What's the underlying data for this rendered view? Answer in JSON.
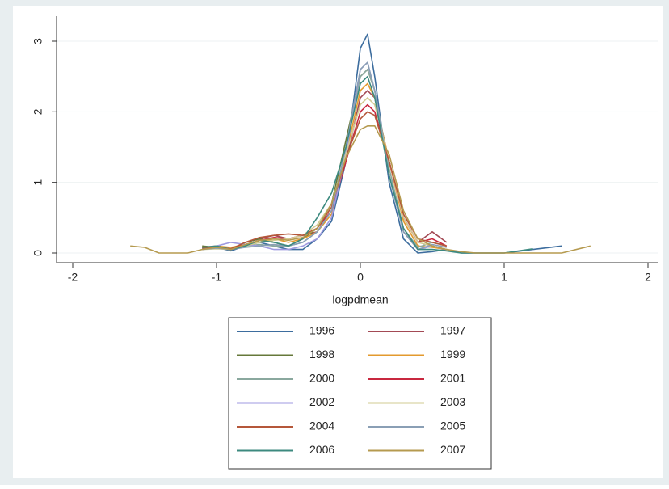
{
  "chart_data": {
    "type": "line",
    "xlabel": "logpdmean",
    "x": [
      -1.6,
      -1.5,
      -1.4,
      -1.2,
      -1.1,
      -1.0,
      -0.9,
      -0.8,
      -0.7,
      -0.6,
      -0.5,
      -0.4,
      -0.3,
      -0.2,
      -0.1,
      0,
      0.05,
      0.1,
      0.2,
      0.3,
      0.4,
      0.5,
      0.6,
      0.7,
      0.8,
      1.0,
      1.2,
      1.4,
      1.6
    ],
    "xlim": [
      -2,
      2
    ],
    "xticks": [
      -2,
      -1,
      0,
      1,
      2
    ],
    "ylim": [
      0,
      3
    ],
    "yticks": [
      0,
      1,
      2,
      3
    ],
    "grid": true,
    "legend": "bottom",
    "series": [
      {
        "name": "1996",
        "color": "#3d6d9e",
        "values": [
          null,
          null,
          null,
          null,
          0.05,
          0.08,
          0.03,
          0.1,
          0.15,
          0.1,
          0.05,
          0.05,
          0.2,
          0.45,
          1.3,
          2.9,
          3.1,
          2.5,
          1.0,
          0.2,
          0.0,
          0.02,
          0.05,
          0.0,
          0.0,
          0.0,
          0.05,
          0.1,
          null
        ]
      },
      {
        "name": "1997",
        "color": "#a34a55",
        "values": [
          null,
          null,
          null,
          null,
          0.08,
          0.1,
          0.05,
          0.15,
          0.2,
          0.25,
          0.2,
          0.25,
          0.3,
          0.6,
          1.3,
          2.2,
          2.3,
          2.2,
          1.3,
          0.5,
          0.15,
          0.3,
          0.15,
          null,
          null,
          null,
          null,
          null,
          null
        ]
      },
      {
        "name": "1998",
        "color": "#66783a",
        "values": [
          null,
          null,
          null,
          null,
          0.1,
          0.08,
          0.05,
          0.15,
          0.2,
          0.15,
          0.1,
          0.2,
          0.35,
          0.7,
          1.6,
          2.5,
          2.6,
          2.3,
          1.1,
          0.3,
          0.05,
          0.1,
          0.05,
          null,
          null,
          null,
          null,
          null,
          null
        ]
      },
      {
        "name": "1999",
        "color": "#e39a2e",
        "values": [
          null,
          null,
          null,
          null,
          0.06,
          0.1,
          0.08,
          0.12,
          0.15,
          0.2,
          0.15,
          0.2,
          0.3,
          0.55,
          1.4,
          2.3,
          2.4,
          2.2,
          1.3,
          0.45,
          0.1,
          0.08,
          0.05,
          null,
          null,
          null,
          null,
          null,
          null
        ]
      },
      {
        "name": "2000",
        "color": "#8aa89e",
        "values": [
          null,
          null,
          null,
          null,
          0.05,
          0.07,
          0.05,
          0.1,
          0.12,
          0.1,
          0.1,
          0.15,
          0.3,
          0.6,
          1.5,
          2.5,
          2.6,
          2.3,
          1.2,
          0.35,
          0.08,
          0.15,
          0.1,
          null,
          null,
          null,
          null,
          null,
          null
        ]
      },
      {
        "name": "2001",
        "color": "#c8283f",
        "values": [
          null,
          null,
          null,
          null,
          0.05,
          0.08,
          0.06,
          0.12,
          0.18,
          0.22,
          0.2,
          0.25,
          0.35,
          0.6,
          1.3,
          2.0,
          2.1,
          2.0,
          1.3,
          0.5,
          0.15,
          0.2,
          0.1,
          null,
          null,
          null,
          null,
          null,
          null
        ]
      },
      {
        "name": "2002",
        "color": "#9f9ae0",
        "values": [
          null,
          null,
          null,
          null,
          0.06,
          0.1,
          0.15,
          0.12,
          0.1,
          0.05,
          0.05,
          0.1,
          0.2,
          0.5,
          1.4,
          2.6,
          2.7,
          2.3,
          1.1,
          0.3,
          0.05,
          0.1,
          0.05,
          null,
          null,
          null,
          null,
          null,
          null
        ]
      },
      {
        "name": "2003",
        "color": "#d2cb92",
        "values": [
          null,
          null,
          null,
          null,
          0.05,
          0.06,
          0.05,
          0.1,
          0.15,
          0.18,
          0.2,
          0.25,
          0.4,
          0.7,
          1.4,
          2.1,
          2.2,
          2.1,
          1.3,
          0.5,
          0.15,
          0.1,
          0.05,
          null,
          null,
          null,
          null,
          null,
          null
        ]
      },
      {
        "name": "2004",
        "color": "#b5573a",
        "values": [
          null,
          null,
          null,
          null,
          0.07,
          0.09,
          0.06,
          0.15,
          0.22,
          0.25,
          0.27,
          0.25,
          0.35,
          0.65,
          1.35,
          1.9,
          2.0,
          1.95,
          1.3,
          0.55,
          0.2,
          0.15,
          0.1,
          null,
          null,
          null,
          null,
          null,
          null
        ]
      },
      {
        "name": "2005",
        "color": "#8a9fb5",
        "values": [
          null,
          null,
          null,
          null,
          0.05,
          0.07,
          0.05,
          0.08,
          0.1,
          0.12,
          0.1,
          0.15,
          0.3,
          0.6,
          1.5,
          2.6,
          2.7,
          2.3,
          1.1,
          0.3,
          0.05,
          0.12,
          0.08,
          null,
          null,
          null,
          null,
          null,
          null
        ]
      },
      {
        "name": "2006",
        "color": "#3c8a7f",
        "values": [
          null,
          null,
          null,
          null,
          0.08,
          0.1,
          0.05,
          0.1,
          0.18,
          0.15,
          0.1,
          0.2,
          0.5,
          0.85,
          1.5,
          2.4,
          2.5,
          2.2,
          1.1,
          0.35,
          0.05,
          0.05,
          0.03,
          0.0,
          0.0,
          0.0,
          0.06,
          null,
          null
        ]
      },
      {
        "name": "2007",
        "color": "#b59a4f",
        "values": [
          0.1,
          0.08,
          0.0,
          0.0,
          0.05,
          0.08,
          0.05,
          0.12,
          0.18,
          0.2,
          0.18,
          0.22,
          0.35,
          0.7,
          1.35,
          1.75,
          1.8,
          1.8,
          1.4,
          0.6,
          0.2,
          0.1,
          0.05,
          0.02,
          0.0,
          0.0,
          0.0,
          0.0,
          0.1
        ]
      }
    ]
  }
}
